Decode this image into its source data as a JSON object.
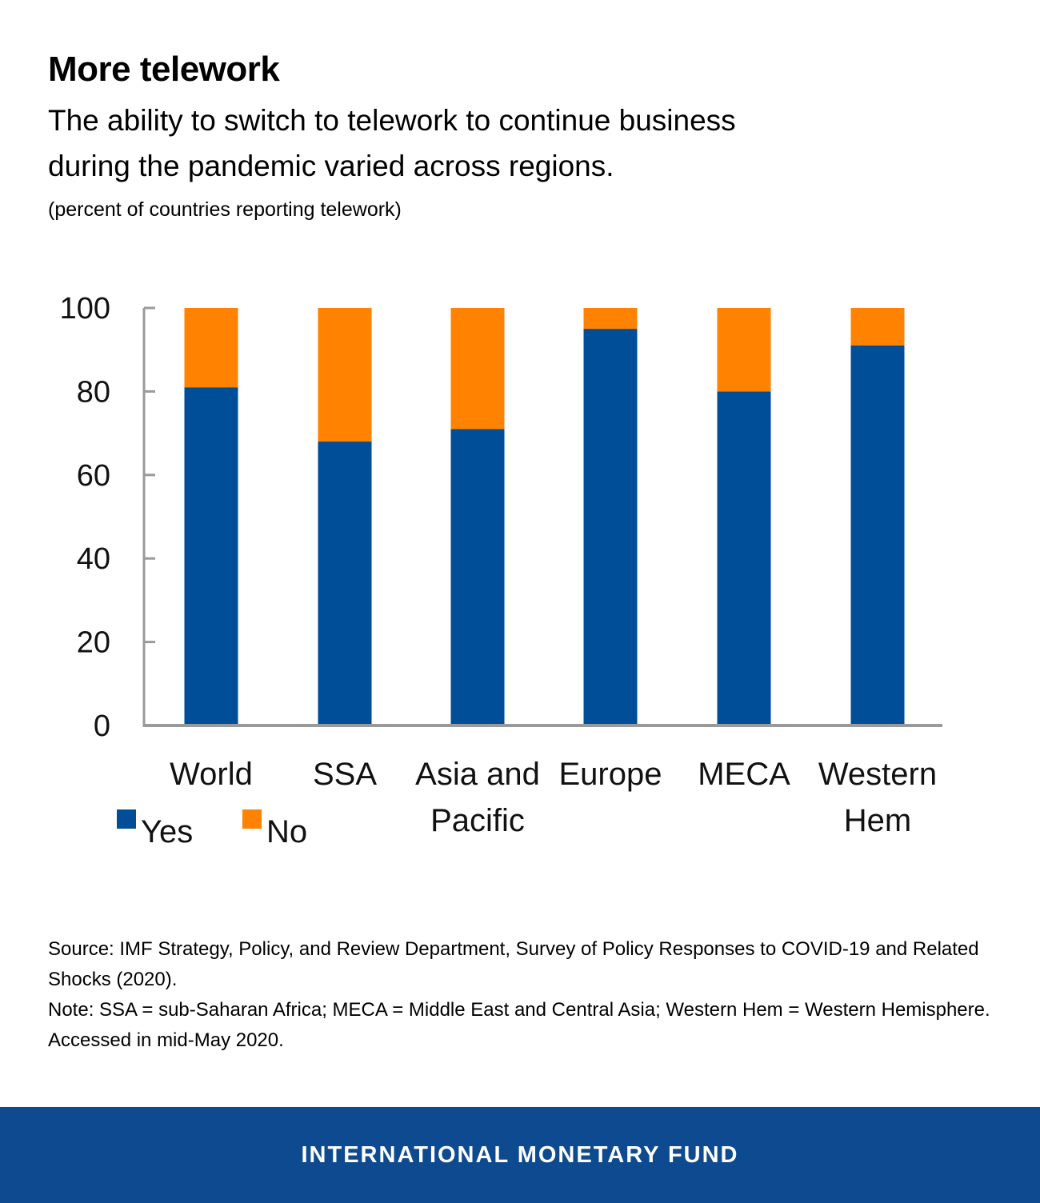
{
  "header": {
    "title": "More telework",
    "subtitle": "The ability to switch to telework to continue business during the pandemic varied across regions.",
    "units": "(percent of countries reporting telework)"
  },
  "chart_data": {
    "type": "bar",
    "stacked": true,
    "categories": [
      [
        "World"
      ],
      [
        "SSA"
      ],
      [
        "Asia and",
        "Pacific"
      ],
      [
        "Europe"
      ],
      [
        "MECA"
      ],
      [
        "Western",
        "Hem"
      ]
    ],
    "series": [
      {
        "name": "Yes",
        "color": "#004e98",
        "values": [
          81,
          68,
          71,
          95,
          80,
          91
        ]
      },
      {
        "name": "No",
        "color": "#ff8200",
        "values": [
          19,
          32,
          29,
          5,
          20,
          9
        ]
      }
    ],
    "ylim": [
      0,
      100
    ],
    "yticks": [
      0,
      20,
      40,
      60,
      80,
      100
    ],
    "legend_position": "bottom-left",
    "grid": false
  },
  "notes": {
    "source": "Source: IMF Strategy, Policy, and Review Department, Survey of Policy Responses to COVID-19 and Related Shocks (2020).",
    "note": "Note: SSA = sub-Saharan Africa; MECA = Middle East and Central Asia; Western Hem = Western Hemisphere. Accessed in mid-May 2020."
  },
  "footer": {
    "text": "INTERNATIONAL MONETARY FUND",
    "color": "#0e4a8f"
  }
}
